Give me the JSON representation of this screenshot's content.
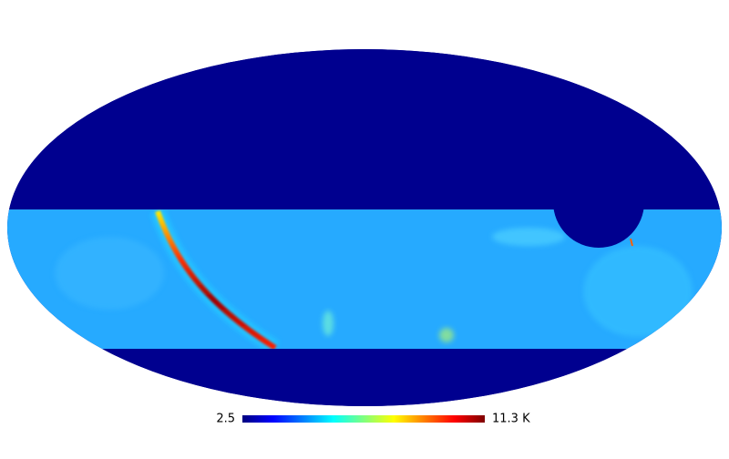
{
  "colorbar": {
    "colormap": [
      "#00007f",
      "#0000ff",
      "#007fff",
      "#00ffff",
      "#7fff7f",
      "#ffff00",
      "#ff7f00",
      "#ff0000",
      "#7f0000"
    ],
    "ticks": [
      2.5,
      {
        "value": 11.3,
        "label": "11.3 K"
      }
    ]
  }
}
